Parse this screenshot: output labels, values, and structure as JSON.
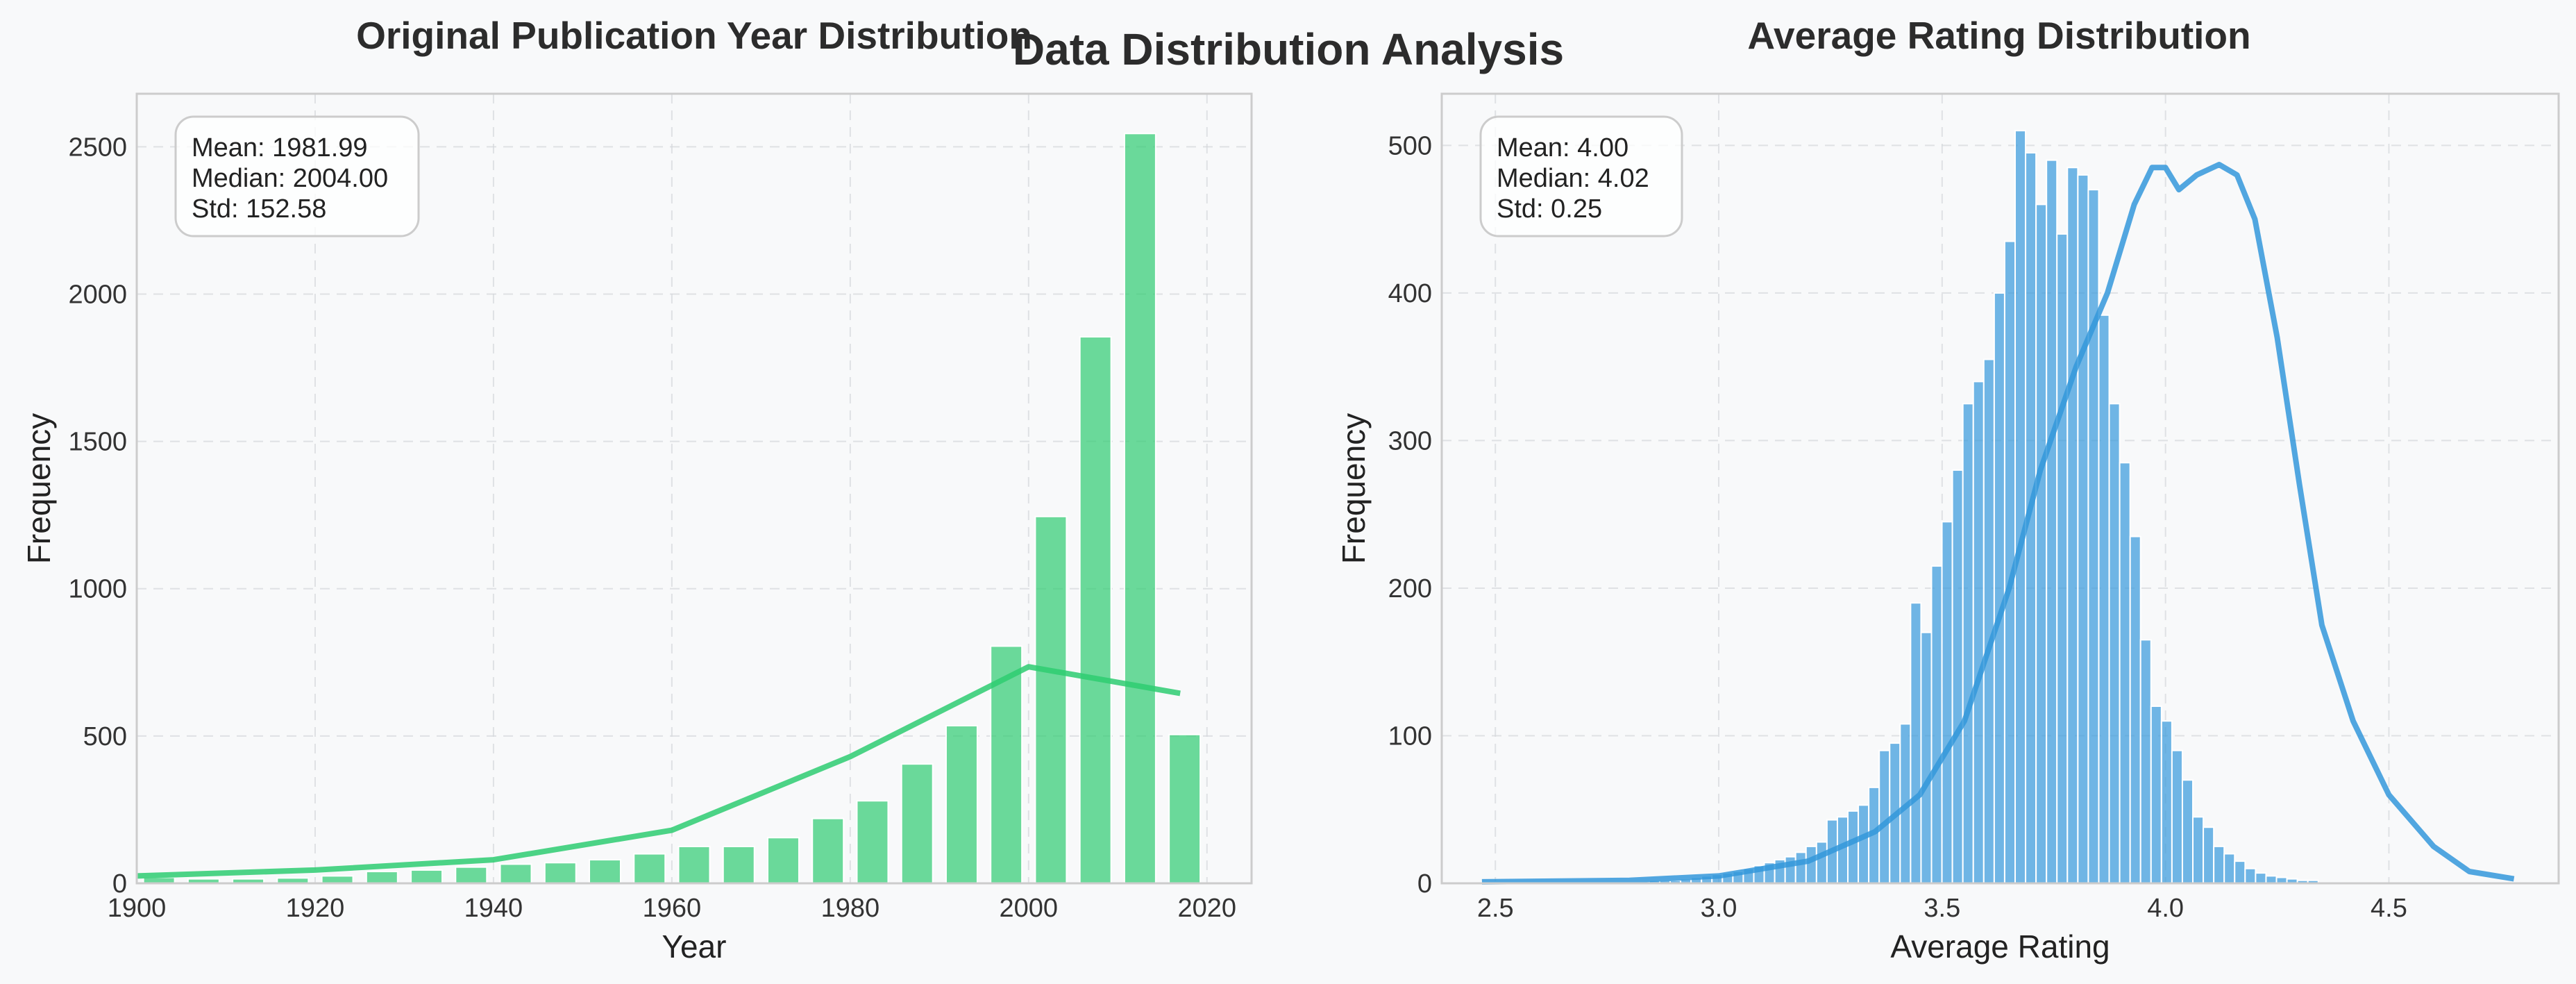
{
  "figure": {
    "suptitle": "Data Distribution Analysis"
  },
  "chart_data": [
    {
      "type": "bar",
      "title": "Original Publication Year Distribution",
      "xlabel": "Year",
      "ylabel": "Frequency",
      "color": "#2ecc71",
      "xlim": [
        1900,
        2025
      ],
      "ylim": [
        0,
        2680
      ],
      "xticks": [
        1900,
        1920,
        1940,
        1960,
        1980,
        2000,
        2020
      ],
      "yticks": [
        0,
        500,
        1000,
        1500,
        2000,
        2500
      ],
      "grid": true,
      "bin_width": 5,
      "bin_starts": [
        1900,
        1905,
        1910,
        1915,
        1920,
        1925,
        1930,
        1935,
        1940,
        1945,
        1950,
        1955,
        1960,
        1965,
        1970,
        1975,
        1980,
        1985,
        1990,
        1995,
        2000,
        2005,
        2010,
        2015
      ],
      "values": [
        20,
        15,
        15,
        18,
        25,
        40,
        45,
        55,
        65,
        70,
        80,
        100,
        125,
        125,
        155,
        220,
        280,
        405,
        535,
        805,
        1245,
        1855,
        2545,
        505
      ],
      "kde_line": {
        "x": [
          1900,
          1920,
          1940,
          1960,
          1980,
          2000,
          2017
        ],
        "y": [
          25,
          45,
          80,
          180,
          430,
          735,
          645
        ]
      },
      "stats": {
        "mean": "Mean: 1981.99",
        "median": "Median: 2004.00",
        "std": "Std: 152.58"
      }
    },
    {
      "type": "bar",
      "title": "Average Rating Distribution",
      "xlabel": "Average Rating",
      "ylabel": "Frequency",
      "color": "#3498db",
      "xlim": [
        2.38,
        4.88
      ],
      "ylim": [
        0,
        535
      ],
      "xticks": [
        2.5,
        3.0,
        3.5,
        4.0,
        4.5
      ],
      "xtick_labels": [
        "2.5",
        "3.0",
        "3.5",
        "4.0",
        "4.5"
      ],
      "yticks": [
        0,
        100,
        200,
        300,
        400,
        500
      ],
      "grid": true,
      "bin_start": 2.47,
      "bin_width": 0.0234,
      "values": [
        1,
        1,
        1,
        1,
        1,
        1,
        1,
        1,
        1,
        1,
        1,
        1,
        1,
        1,
        1,
        1,
        2,
        2,
        2,
        3,
        4,
        5,
        6,
        7,
        8,
        10,
        12,
        14,
        16,
        18,
        21,
        25,
        28,
        43,
        45,
        49,
        53,
        65,
        90,
        95,
        108,
        190,
        170,
        215,
        245,
        280,
        325,
        340,
        355,
        400,
        435,
        510,
        495,
        460,
        490,
        440,
        485,
        480,
        470,
        385,
        325,
        285,
        235,
        165,
        120,
        110,
        90,
        70,
        45,
        38,
        25,
        20,
        15,
        10,
        7,
        5,
        4,
        3,
        2,
        2
      ],
      "kde_line": {
        "x": [
          2.47,
          2.8,
          3.0,
          3.2,
          3.35,
          3.45,
          3.55,
          3.65,
          3.72,
          3.8,
          3.87,
          3.93,
          3.97,
          4.0,
          4.03,
          4.07,
          4.12,
          4.16,
          4.2,
          4.25,
          4.3,
          4.35,
          4.42,
          4.5,
          4.6,
          4.68,
          4.78
        ],
        "y": [
          1,
          2,
          5,
          15,
          35,
          60,
          110,
          200,
          280,
          350,
          400,
          460,
          485,
          485,
          470,
          480,
          487,
          480,
          450,
          370,
          270,
          175,
          110,
          60,
          25,
          8,
          3
        ]
      },
      "stats": {
        "mean": "Mean: 4.00",
        "median": "Median: 4.02",
        "std": "Std: 0.25"
      }
    }
  ]
}
